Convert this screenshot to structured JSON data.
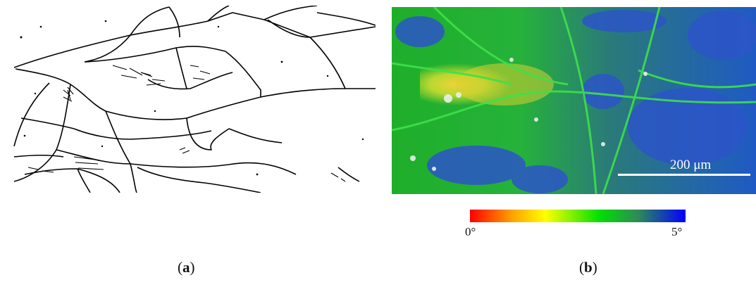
{
  "panel_a": {
    "caption_open": "(",
    "caption_letter": "a",
    "caption_close": ")"
  },
  "panel_b": {
    "caption_open": "(",
    "caption_letter": "b",
    "caption_close": ")",
    "scale_bar_label": "200 μm"
  },
  "colorbar": {
    "min_label": "0°",
    "max_label": "5°",
    "colors": [
      "#ff0000",
      "#ffa500",
      "#ffff00",
      "#00e000",
      "#2e8b57",
      "#0000ff"
    ]
  }
}
